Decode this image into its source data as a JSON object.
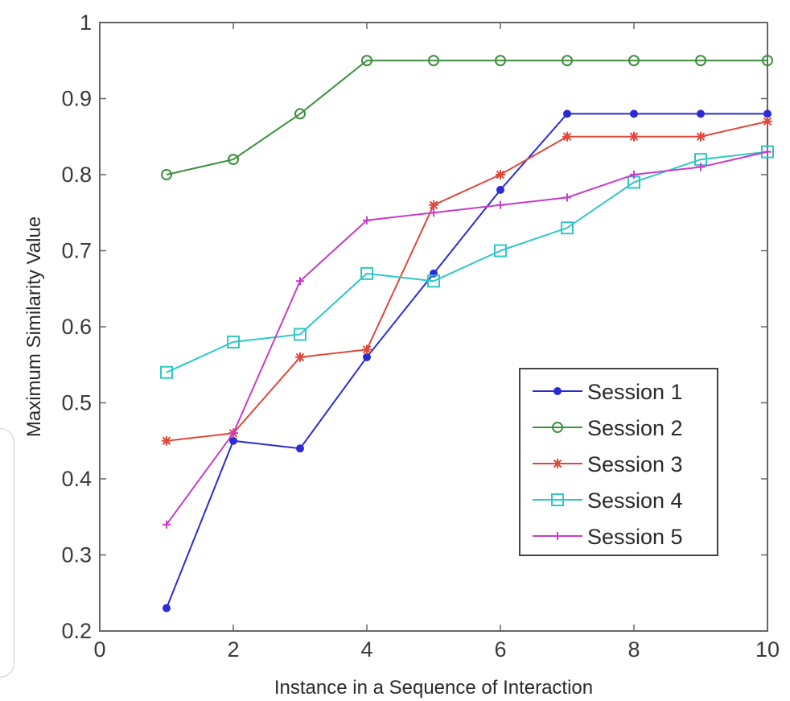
{
  "chart_data": {
    "type": "line",
    "title": "",
    "xlabel": "Instance in a Sequence of Interaction",
    "ylabel": "Maximum Similarity Value",
    "xlim": [
      0,
      10
    ],
    "ylim": [
      0.2,
      1
    ],
    "xticks": [
      0,
      2,
      4,
      6,
      8,
      10
    ],
    "xtick_labels": [
      "0",
      "2",
      "4",
      "6",
      "8",
      "10"
    ],
    "yticks": [
      0.2,
      0.3,
      0.4,
      0.5,
      0.6,
      0.7,
      0.8,
      0.9,
      1.0
    ],
    "ytick_labels": [
      "0.2",
      "0.3",
      "0.4",
      "0.5",
      "0.6",
      "0.7",
      "0.8",
      "0.9",
      "1"
    ],
    "grid": false,
    "legend_position": "lower-right",
    "x": [
      1,
      2,
      3,
      4,
      5,
      6,
      7,
      8,
      9,
      10
    ],
    "series": [
      {
        "name": "Session 1",
        "color": "#2b2bd6",
        "marker": "dot",
        "values": [
          0.23,
          0.45,
          0.44,
          0.56,
          0.67,
          0.78,
          0.88,
          0.88,
          0.88,
          0.88
        ]
      },
      {
        "name": "Session 2",
        "color": "#3c8f3c",
        "marker": "circle",
        "values": [
          0.8,
          0.82,
          0.88,
          0.95,
          0.95,
          0.95,
          0.95,
          0.95,
          0.95,
          0.95
        ]
      },
      {
        "name": "Session 3",
        "color": "#e0483c",
        "marker": "asterisk",
        "values": [
          0.45,
          0.46,
          0.56,
          0.57,
          0.76,
          0.8,
          0.85,
          0.85,
          0.85,
          0.87
        ]
      },
      {
        "name": "Session 4",
        "color": "#2ec7c7",
        "marker": "square",
        "values": [
          0.54,
          0.58,
          0.59,
          0.67,
          0.66,
          0.7,
          0.73,
          0.79,
          0.82,
          0.83
        ]
      },
      {
        "name": "Session 5",
        "color": "#c83cc8",
        "marker": "plus",
        "values": [
          0.34,
          0.46,
          0.66,
          0.74,
          0.75,
          0.76,
          0.77,
          0.8,
          0.81,
          0.83
        ]
      }
    ]
  }
}
